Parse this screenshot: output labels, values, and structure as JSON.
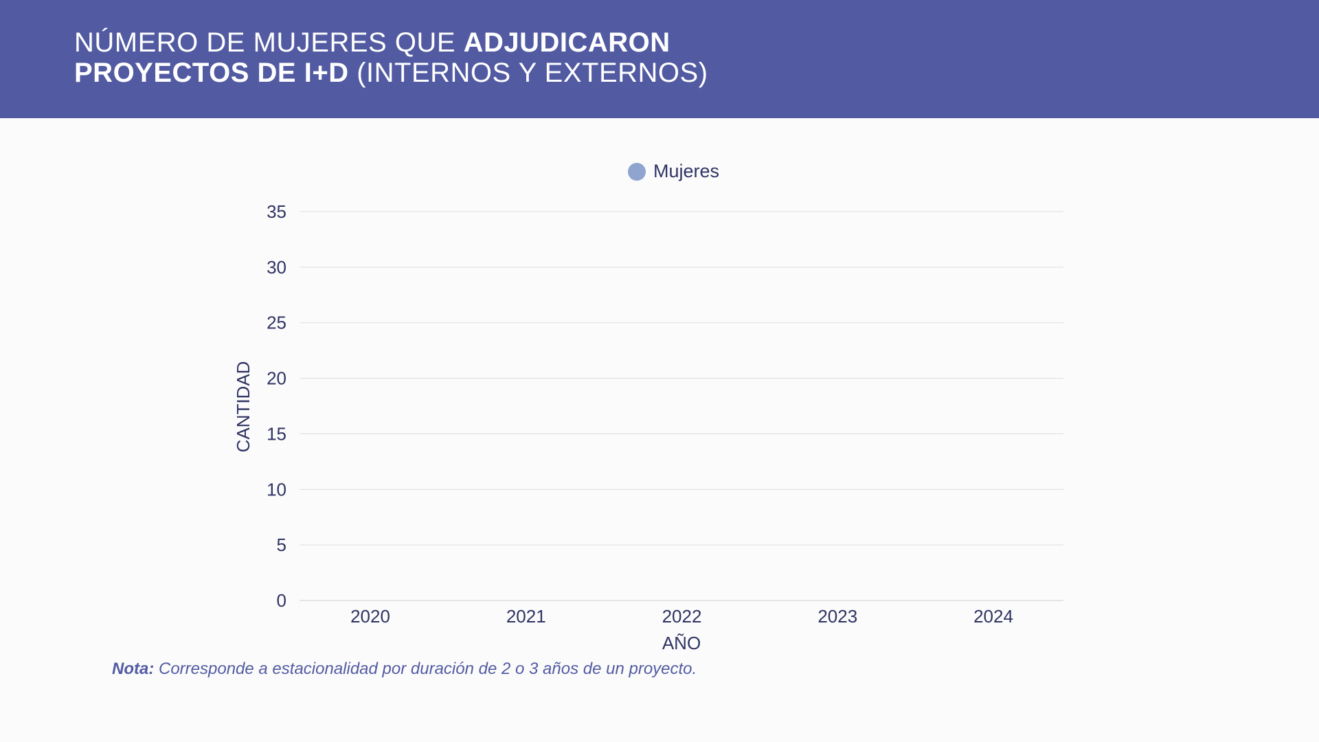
{
  "header": {
    "title_line1_normal": "NÚMERO DE MUJERES QUE ",
    "title_line1_bold": "ADJUDICARON",
    "title_line2_bold": "PROYECTOS DE I+D",
    "title_line2_normal": " (INTERNOS Y EXTERNOS)"
  },
  "colors": {
    "header_bg": "#525ba2",
    "series_mujeres": "#8fa4cf",
    "text": "#2f3363",
    "grid": "#dcdcdc"
  },
  "chart_data": {
    "type": "bar",
    "title": "NÚMERO DE MUJERES QUE ADJUDICARON PROYECTOS DE I+D (INTERNOS Y EXTERNOS)",
    "categories": [
      "2020",
      "2021",
      "2022",
      "2023",
      "2024"
    ],
    "series": [
      {
        "name": "Mujeres",
        "values": [
          null,
          null,
          null,
          null,
          null
        ]
      }
    ],
    "xlabel": "AÑO",
    "ylabel": "CANTIDAD",
    "ylim": [
      0,
      35
    ],
    "yticks": [
      "0",
      "5",
      "10",
      "15",
      "20",
      "25",
      "30",
      "35"
    ],
    "grid": true,
    "legend_position": "top-center"
  },
  "note": {
    "label": "Nota:",
    "text": " Corresponde a estacionalidad por duración de 2 o 3 años de un proyecto."
  }
}
